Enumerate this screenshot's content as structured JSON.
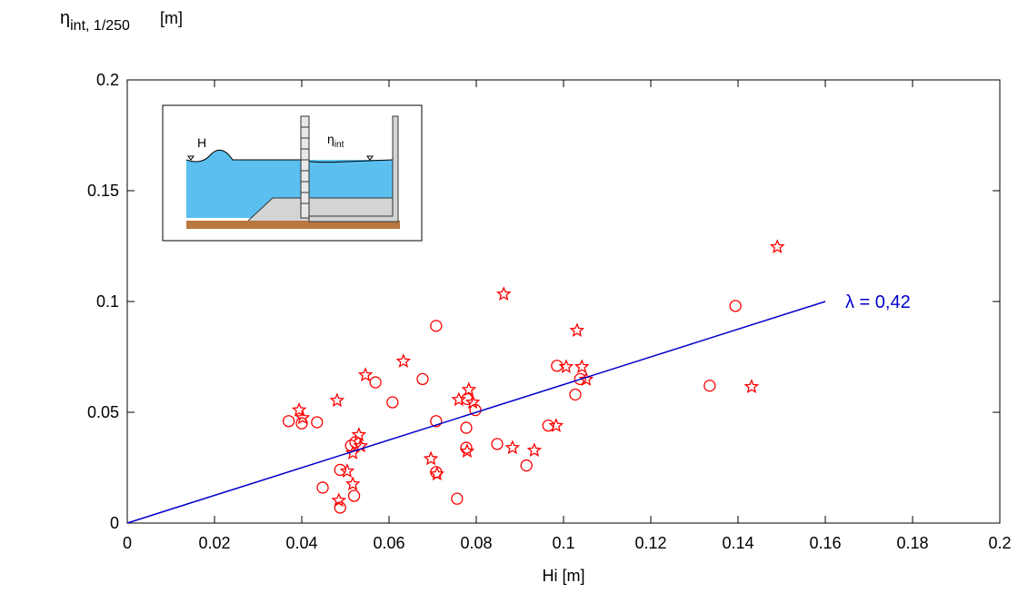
{
  "chart_data": {
    "type": "scatter",
    "y_label": "η",
    "y_label_sub": "int, 1/250",
    "y_label_unit": "[m]",
    "x_label": "Hi  [m]",
    "xlim": [
      0,
      0.2
    ],
    "xticks": [
      0,
      0.02,
      0.04,
      0.06,
      0.08,
      0.1,
      0.12,
      0.14,
      0.16,
      0.18,
      0.2
    ],
    "ylim": [
      0,
      0.2
    ],
    "yticks": [
      0,
      0.05,
      0.1,
      0.15,
      0.2
    ],
    "grid": false,
    "series": [
      {
        "marker": "circle",
        "color": "#ff0000",
        "x": [
          0.037,
          0.04,
          0.0435,
          0.0448,
          0.0488,
          0.0488,
          0.0523,
          0.052,
          0.0513,
          0.0569,
          0.0608,
          0.0677,
          0.0708,
          0.0708,
          0.0708,
          0.0756,
          0.0777,
          0.0777,
          0.0779,
          0.0798,
          0.0848,
          0.0915,
          0.0965,
          0.0985,
          0.1027,
          0.1038,
          0.1335,
          0.1394
        ],
        "values": [
          0.046,
          0.045,
          0.0455,
          0.016,
          0.024,
          0.007,
          0.0365,
          0.0123,
          0.035,
          0.0635,
          0.0545,
          0.065,
          0.089,
          0.046,
          0.023,
          0.011,
          0.043,
          0.034,
          0.056,
          0.051,
          0.0357,
          0.026,
          0.044,
          0.071,
          0.058,
          0.065,
          0.062,
          0.098
        ]
      },
      {
        "marker": "star",
        "color": "#ff0000",
        "x": [
          0.0394,
          0.0402,
          0.0481,
          0.0485,
          0.0504,
          0.0517,
          0.0517,
          0.0531,
          0.0535,
          0.0546,
          0.0633,
          0.0696,
          0.071,
          0.076,
          0.0779,
          0.0783,
          0.0792,
          0.0863,
          0.0883,
          0.0933,
          0.0983,
          0.1006,
          0.1031,
          0.1042,
          0.1052,
          0.1431,
          0.149
        ],
        "values": [
          0.051,
          0.0475,
          0.0553,
          0.0102,
          0.0234,
          0.0176,
          0.0316,
          0.0398,
          0.0348,
          0.0668,
          0.073,
          0.029,
          0.0221,
          0.0557,
          0.0324,
          0.0602,
          0.0545,
          0.1033,
          0.034,
          0.0328,
          0.0439,
          0.0705,
          0.0869,
          0.0705,
          0.0648,
          0.0615,
          0.1246
        ]
      },
      {
        "marker": "line",
        "name": "λ = 0,42",
        "color": "#0000cc",
        "x": [
          0,
          0.16
        ],
        "values": [
          0,
          0.1
        ]
      }
    ]
  },
  "inset": {
    "wave_label": "H",
    "level_label": "η",
    "level_label_sub": "int"
  }
}
